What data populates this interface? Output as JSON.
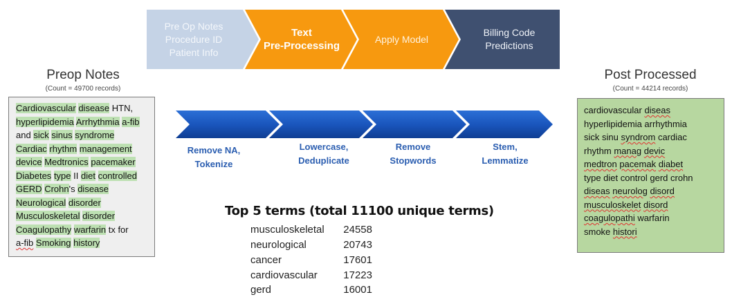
{
  "pipeline": {
    "stages": [
      {
        "lines": [
          "Pre Op Notes",
          "Procedure ID",
          "Patient Info"
        ],
        "color": "#c5d3e6"
      },
      {
        "lines": [
          "Text",
          "Pre-Processing"
        ],
        "color": "#f7990f"
      },
      {
        "lines": [
          "Apply Model"
        ],
        "color": "#f7990f"
      },
      {
        "lines": [
          "Billing Code",
          "Predictions"
        ],
        "color": "#3f5070"
      }
    ]
  },
  "preop": {
    "title": "Preop Notes",
    "count": "(Count = 49700 records)",
    "lines": [
      "Cardiovascular disease HTN,",
      "hyperlipidemia Arrhythmia a-fib",
      "and sick sinus syndrome",
      "Cardiac rhythm management",
      "device Medtronics pacemaker",
      "Diabetes type II diet controlled",
      "GERD Crohn's disease",
      "Neurological disorder",
      "Musculoskeletal disorder",
      "Coagulopathy warfarin tx for",
      "a-fib Smoking history"
    ]
  },
  "post": {
    "title": "Post Processed",
    "count": "(Count = 44214  records)",
    "lines": [
      "cardiovascular diseas",
      "hyperlipidemia arrhythmia",
      "sick sinu syndrom cardiac",
      "rhythm manag devic",
      "medtron pacemak diabet",
      "type diet control gerd crohn",
      "diseas neurolog disord",
      "musculoskelet disord",
      "coagulopathi warfarin",
      "smoke histori"
    ]
  },
  "steps": {
    "color": "#1f5bbf",
    "items": [
      {
        "lines": [
          "Remove NA,",
          "Tokenize"
        ]
      },
      {
        "lines": [
          "Lowercase,",
          "Deduplicate"
        ]
      },
      {
        "lines": [
          "Remove",
          "Stopwords"
        ]
      },
      {
        "lines": [
          "Stem,",
          "Lemmatize"
        ]
      }
    ]
  },
  "top_terms": {
    "title": "Top 5 terms (total 11100 unique terms)",
    "rows": [
      {
        "term": "musculoskeletal",
        "count": "24558"
      },
      {
        "term": "neurological",
        "count": "20743"
      },
      {
        "term": "cancer",
        "count": "17601"
      },
      {
        "term": "cardiovascular",
        "count": "17223"
      },
      {
        "term": "gerd",
        "count": "16001"
      }
    ]
  }
}
